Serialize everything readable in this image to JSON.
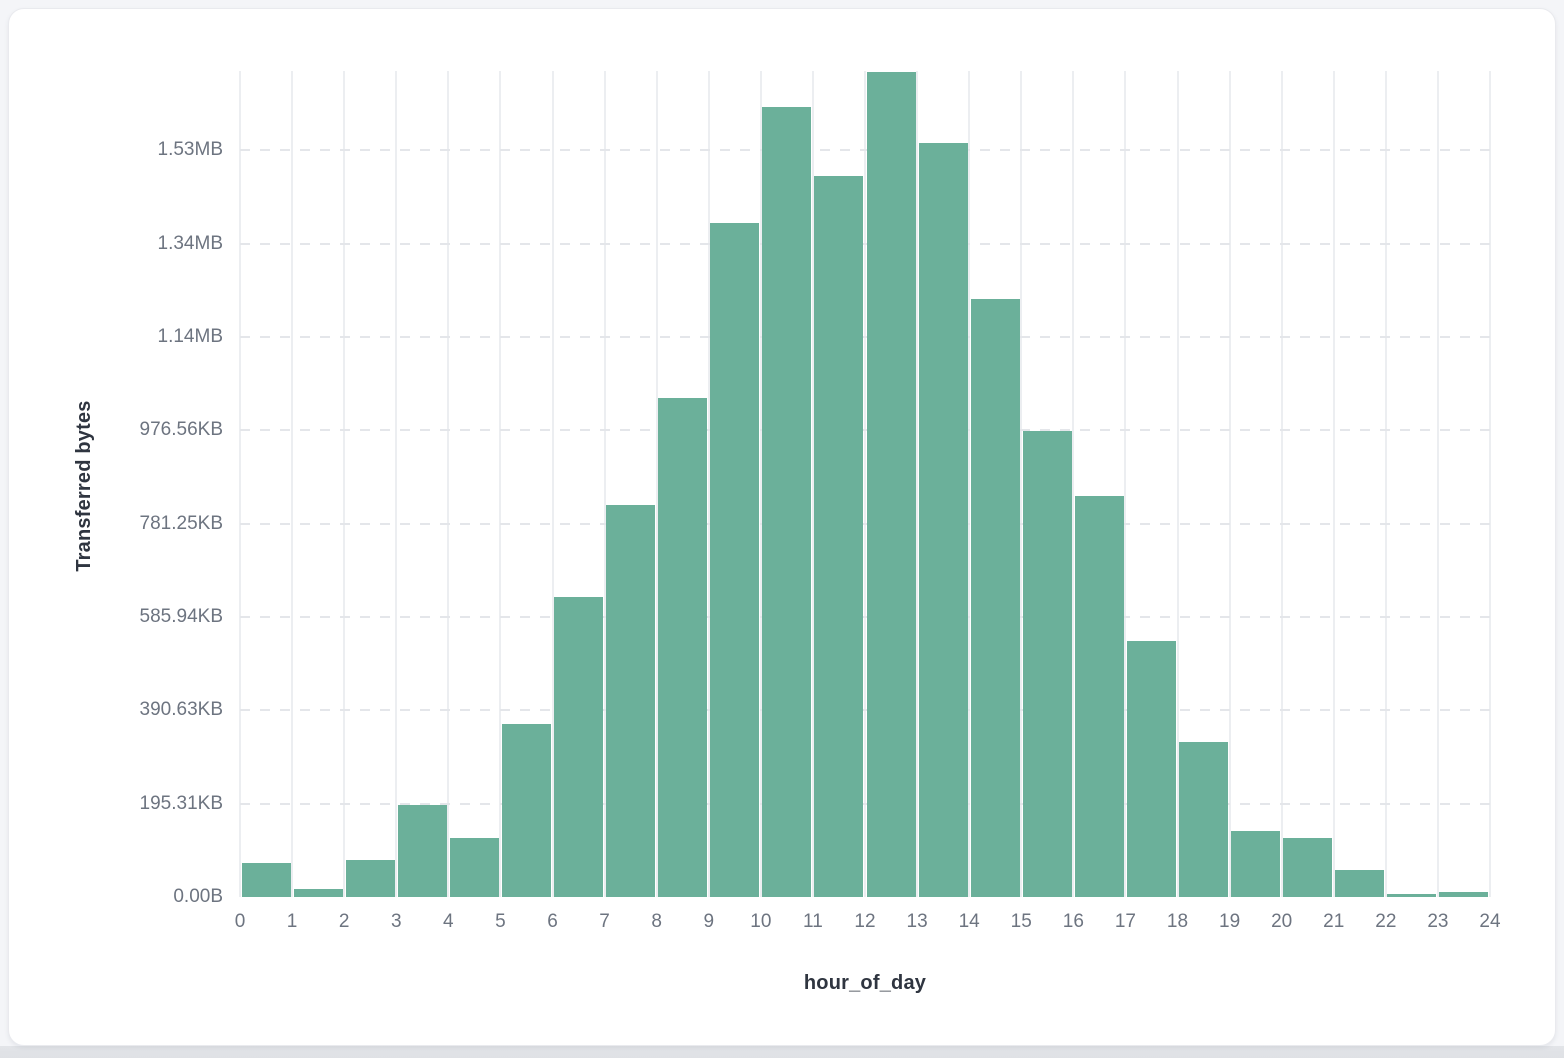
{
  "colors": {
    "bar": "#6bb09a",
    "vertical_gridline": "#eceef1",
    "horizontal_gridline": "#e4e6ea",
    "tick_text": "#6d7480",
    "axis_title_text": "#2f3540",
    "card_background": "#ffffff",
    "page_background": "#f4f5f8"
  },
  "chart_data": {
    "type": "bar",
    "title": "",
    "xlabel": "hour_of_day",
    "ylabel": "Transferred bytes",
    "categories": [
      0,
      1,
      2,
      3,
      4,
      5,
      6,
      7,
      8,
      9,
      10,
      11,
      12,
      13,
      14,
      15,
      16,
      17,
      18,
      19,
      20,
      21,
      22,
      23
    ],
    "values_bytes": [
      73000,
      17000,
      79000,
      197000,
      126000,
      371000,
      643000,
      840000,
      1069000,
      1444000,
      1693000,
      1545000,
      1768000,
      1616000,
      1281000,
      999000,
      859000,
      549000,
      332000,
      141000,
      126000,
      58000,
      6000,
      11000
    ],
    "x_ticks": [
      "0",
      "1",
      "2",
      "3",
      "4",
      "5",
      "6",
      "7",
      "8",
      "9",
      "10",
      "11",
      "12",
      "13",
      "14",
      "15",
      "16",
      "17",
      "18",
      "19",
      "20",
      "21",
      "22",
      "23",
      "24"
    ],
    "y_ticks": [
      {
        "label": "0.00B",
        "value": 0
      },
      {
        "label": "195.31KB",
        "value": 200000
      },
      {
        "label": "390.63KB",
        "value": 400000
      },
      {
        "label": "585.94KB",
        "value": 600000
      },
      {
        "label": "781.25KB",
        "value": 800000
      },
      {
        "label": "976.56KB",
        "value": 1000000
      },
      {
        "label": "1.14MB",
        "value": 1200000
      },
      {
        "label": "1.34MB",
        "value": 1400000
      },
      {
        "label": "1.53MB",
        "value": 1600000
      }
    ],
    "ylim_bytes": [
      0,
      1770000
    ],
    "grid": {
      "vertical": "solid",
      "horizontal": "dashed"
    },
    "legend": "none"
  }
}
